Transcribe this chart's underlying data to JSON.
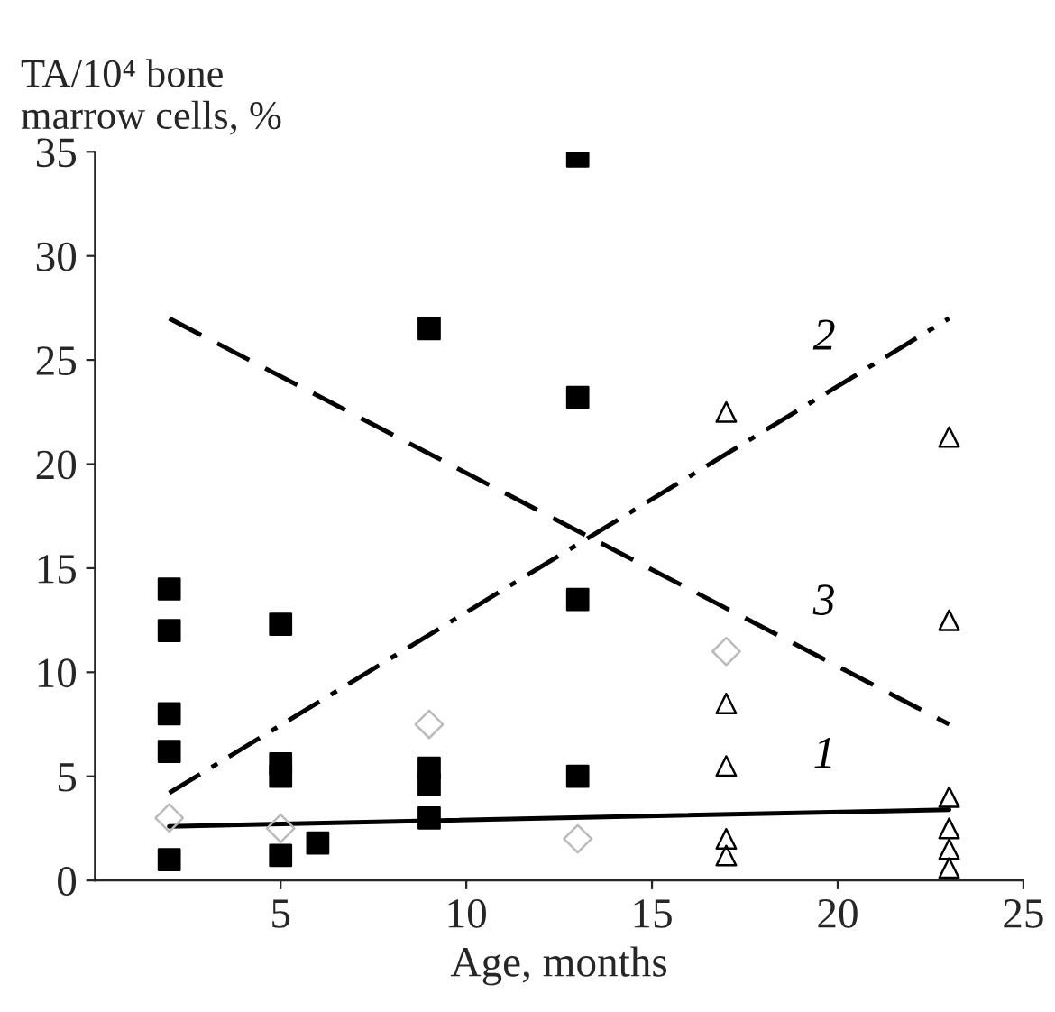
{
  "chart_data": {
    "type": "scatter",
    "xlabel": "Age, months",
    "ylabel": "TA/10⁴ bone\nmarrow cells, %",
    "xlim": [
      0,
      25
    ],
    "ylim": [
      0,
      35
    ],
    "xticks": [
      5,
      10,
      15,
      20,
      25
    ],
    "yticks": [
      0,
      5,
      10,
      15,
      20,
      25,
      30,
      35
    ],
    "grid": false,
    "legend": false,
    "series": [
      {
        "marker": "square",
        "color": "#000000",
        "x": [
          2,
          2,
          2,
          2,
          2,
          5,
          5,
          5,
          5,
          6,
          9,
          9,
          9,
          9,
          13,
          13,
          13,
          13
        ],
        "values": [
          14,
          12,
          8,
          6.2,
          1,
          12.3,
          5.6,
          5,
          1.2,
          1.8,
          26.5,
          5.4,
          4.6,
          3,
          34.8,
          23.2,
          13.5,
          5
        ]
      },
      {
        "marker": "triangle",
        "color": "#000000",
        "x": [
          17,
          17,
          17,
          17,
          17,
          23,
          23,
          23,
          23,
          23,
          23
        ],
        "values": [
          22.5,
          8.5,
          5.5,
          2,
          1.2,
          21.3,
          12.5,
          4,
          2.5,
          1.5,
          0.6
        ]
      },
      {
        "marker": "diamond",
        "color": "#bbbbbb",
        "x": [
          2,
          5,
          9,
          13,
          17
        ],
        "values": [
          3,
          2.5,
          7.5,
          2,
          11
        ]
      },
      {
        "type": "line",
        "name": "1",
        "line_style": "solid",
        "marker": "none",
        "color": "#000000",
        "x": [
          2,
          23
        ],
        "values": [
          2.6,
          3.4
        ]
      },
      {
        "type": "line",
        "name": "2",
        "line_style": "dashdot",
        "marker": "none",
        "color": "#000000",
        "x": [
          2,
          23
        ],
        "values": [
          4.2,
          27
        ]
      },
      {
        "type": "line",
        "name": "3",
        "line_style": "dashed",
        "marker": "none",
        "color": "#000000",
        "x": [
          2,
          23
        ],
        "values": [
          27,
          7.5
        ]
      }
    ]
  }
}
